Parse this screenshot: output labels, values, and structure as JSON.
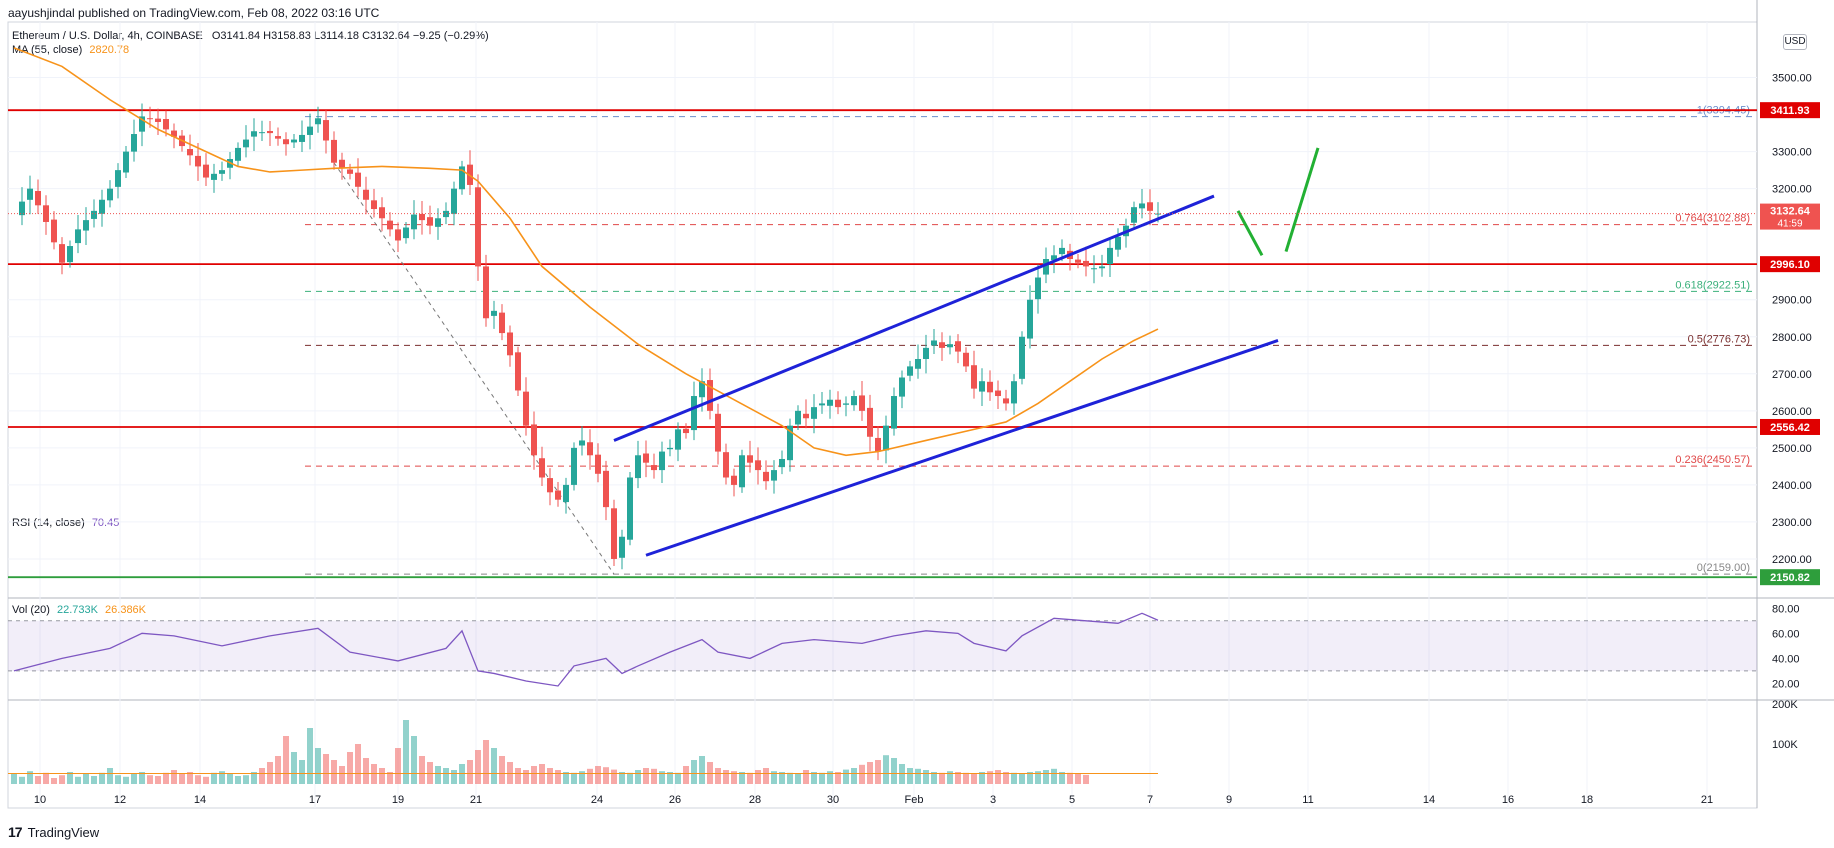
{
  "header": {
    "published_by": "aayushjindal published on TradingView.com, Feb 08, 2022 03:16 UTC"
  },
  "legend": {
    "symbol": "Ethereum / U.S. Dollar, 4h, COINBASE",
    "ohlc": "O3141.84 H3158.83 L3114.18 C3132.64 −9.25 (−0.29%)",
    "ma_label": "MA (55, close)",
    "ma_value": "2820.78",
    "rsi_label": "RSI (14, close)",
    "rsi_value": "70.45",
    "vol_label": "Vol (20)",
    "vol_value1": "22.733K",
    "vol_value2": "26.386K"
  },
  "currency_button": "USD",
  "footer": {
    "brand": "TradingView",
    "logo_icon": "tradingview-logo-icon"
  },
  "colors": {
    "up": "#26a69a",
    "down": "#ef5350",
    "ma": "#f7931a",
    "channel": "#1e22d8",
    "resistance": "#e00000",
    "support_green": "#2e9e3c",
    "rsi": "#7e57c2",
    "fib_red": "#e04848",
    "fib_green": "#3bb07b",
    "fib_blue": "#6b8fcc",
    "fib_dark": "#7a2f2f"
  },
  "chart_data": {
    "type": "candlestick",
    "symbol": "Ethereum / U.S. Dollar",
    "timeframe": "4h",
    "exchange": "COINBASE",
    "price_axis": {
      "ylim": [
        2100,
        3650
      ],
      "ticks": [
        2200,
        2300,
        2400,
        2500,
        2600,
        2700,
        2800,
        2900,
        3200,
        3300,
        3500
      ]
    },
    "time_axis": {
      "labels": [
        "10",
        "12",
        "14",
        "17",
        "19",
        "21",
        "24",
        "26",
        "28",
        "30",
        "Feb",
        "3",
        "5",
        "7",
        "9",
        "11",
        "14",
        "16",
        "18",
        "21"
      ]
    },
    "close_path": [
      [
        0,
        3130
      ],
      [
        2,
        3200
      ],
      [
        4,
        3110
      ],
      [
        6,
        3000
      ],
      [
        8,
        3090
      ],
      [
        10,
        3140
      ],
      [
        12,
        3200
      ],
      [
        14,
        3300
      ],
      [
        16,
        3395
      ],
      [
        18,
        3380
      ],
      [
        20,
        3340
      ],
      [
        22,
        3290
      ],
      [
        24,
        3230
      ],
      [
        26,
        3250
      ],
      [
        28,
        3310
      ],
      [
        30,
        3355
      ],
      [
        32,
        3350
      ],
      [
        34,
        3320
      ],
      [
        36,
        3345
      ],
      [
        38,
        3390
      ],
      [
        40,
        3270
      ],
      [
        42,
        3240
      ],
      [
        44,
        3170
      ],
      [
        46,
        3120
      ],
      [
        48,
        3060
      ],
      [
        50,
        3130
      ],
      [
        52,
        3100
      ],
      [
        54,
        3140
      ],
      [
        56,
        3260
      ],
      [
        57,
        3210
      ],
      [
        58,
        2990
      ],
      [
        59,
        2850
      ],
      [
        60,
        2870
      ],
      [
        62,
        2750
      ],
      [
        64,
        2560
      ],
      [
        65,
        2480
      ],
      [
        66,
        2420
      ],
      [
        67,
        2380
      ],
      [
        68,
        2360
      ],
      [
        69,
        2400
      ],
      [
        70,
        2500
      ],
      [
        71,
        2520
      ],
      [
        72,
        2480
      ],
      [
        73,
        2430
      ],
      [
        74,
        2340
      ],
      [
        75,
        2200
      ],
      [
        76,
        2260
      ],
      [
        77,
        2420
      ],
      [
        78,
        2480
      ],
      [
        79,
        2460
      ],
      [
        80,
        2440
      ],
      [
        81,
        2490
      ],
      [
        82,
        2500
      ],
      [
        83,
        2550
      ],
      [
        84,
        2540
      ],
      [
        85,
        2640
      ],
      [
        86,
        2680
      ],
      [
        87,
        2600
      ],
      [
        88,
        2490
      ],
      [
        89,
        2420
      ],
      [
        90,
        2400
      ],
      [
        91,
        2480
      ],
      [
        92,
        2460
      ],
      [
        93,
        2440
      ],
      [
        94,
        2410
      ],
      [
        95,
        2440
      ],
      [
        96,
        2470
      ],
      [
        97,
        2560
      ],
      [
        98,
        2600
      ],
      [
        99,
        2580
      ],
      [
        100,
        2610
      ],
      [
        101,
        2620
      ],
      [
        102,
        2630
      ],
      [
        103,
        2610
      ],
      [
        104,
        2620
      ],
      [
        105,
        2640
      ],
      [
        106,
        2600
      ],
      [
        107,
        2530
      ],
      [
        108,
        2490
      ],
      [
        109,
        2560
      ],
      [
        110,
        2640
      ],
      [
        111,
        2690
      ],
      [
        112,
        2720
      ],
      [
        113,
        2740
      ],
      [
        114,
        2770
      ],
      [
        115,
        2790
      ],
      [
        116,
        2770
      ],
      [
        117,
        2780
      ],
      [
        118,
        2760
      ],
      [
        119,
        2720
      ],
      [
        120,
        2660
      ],
      [
        121,
        2680
      ],
      [
        122,
        2650
      ],
      [
        123,
        2640
      ],
      [
        124,
        2620
      ],
      [
        125,
        2680
      ],
      [
        126,
        2800
      ],
      [
        127,
        2900
      ],
      [
        128,
        2960
      ],
      [
        129,
        3010
      ],
      [
        130,
        3020
      ],
      [
        131,
        3040
      ],
      [
        132,
        3010
      ],
      [
        133,
        3000
      ],
      [
        134,
        2990
      ],
      [
        135,
        2985
      ],
      [
        136,
        2990
      ],
      [
        137,
        3040
      ],
      [
        138,
        3070
      ],
      [
        139,
        3100
      ],
      [
        140,
        3150
      ],
      [
        141,
        3160
      ],
      [
        142,
        3140
      ],
      [
        143,
        3132.64
      ]
    ],
    "ma_path": [
      [
        0,
        3580
      ],
      [
        6,
        3530
      ],
      [
        12,
        3440
      ],
      [
        18,
        3360
      ],
      [
        24,
        3300
      ],
      [
        28,
        3260
      ],
      [
        32,
        3245
      ],
      [
        36,
        3250
      ],
      [
        40,
        3255
      ],
      [
        46,
        3260
      ],
      [
        52,
        3255
      ],
      [
        56,
        3250
      ],
      [
        58,
        3220
      ],
      [
        62,
        3120
      ],
      [
        66,
        2990
      ],
      [
        72,
        2880
      ],
      [
        78,
        2780
      ],
      [
        84,
        2700
      ],
      [
        90,
        2630
      ],
      [
        96,
        2560
      ],
      [
        100,
        2500
      ],
      [
        104,
        2480
      ],
      [
        108,
        2490
      ],
      [
        114,
        2520
      ],
      [
        120,
        2550
      ],
      [
        124,
        2570
      ],
      [
        128,
        2620
      ],
      [
        132,
        2680
      ],
      [
        136,
        2740
      ],
      [
        140,
        2790
      ],
      [
        143,
        2820.78
      ]
    ],
    "horizontal_levels": [
      {
        "label": "3411.93",
        "price": 3411.93,
        "color": "#e00000"
      },
      {
        "label": "2996.10",
        "price": 2996.1,
        "color": "#e00000"
      },
      {
        "label": "2556.42",
        "price": 2556.42,
        "color": "#e00000"
      },
      {
        "label": "2150.82",
        "price": 2150.82,
        "color": "#2e9e3c"
      }
    ],
    "fibonacci_levels": [
      {
        "label": "1(3394.45)",
        "price": 3394.45
      },
      {
        "label": "0.764(3102.88)",
        "price": 3102.88
      },
      {
        "label": "0.618(2922.51)",
        "price": 2922.51
      },
      {
        "label": "0.5(2776.73)",
        "price": 2776.73
      },
      {
        "label": "0.236(2450.57)",
        "price": 2450.57
      },
      {
        "label": "0(2159.00)",
        "price": 2159.0
      }
    ],
    "current_price": {
      "label": "3132.64",
      "price": 3132.64,
      "countdown": "41:59"
    },
    "channel": {
      "upper": [
        [
          75,
          2520
        ],
        [
          150,
          3180
        ]
      ],
      "lower": [
        [
          79,
          2210
        ],
        [
          158,
          2790
        ]
      ]
    },
    "projection_arrows": [
      {
        "from": [
          153,
          3140
        ],
        "to": [
          156,
          3020
        ]
      },
      {
        "from": [
          159,
          3030
        ],
        "to": [
          163,
          3310
        ]
      }
    ],
    "rsi": {
      "ylim": [
        10,
        85
      ],
      "ticks": [
        20,
        40,
        60,
        80
      ],
      "upper_band": 70,
      "lower_band": 30,
      "path": [
        [
          0,
          30
        ],
        [
          6,
          40
        ],
        [
          12,
          48
        ],
        [
          16,
          60
        ],
        [
          20,
          58
        ],
        [
          26,
          50
        ],
        [
          32,
          58
        ],
        [
          38,
          64
        ],
        [
          42,
          45
        ],
        [
          48,
          38
        ],
        [
          54,
          48
        ],
        [
          56,
          62
        ],
        [
          58,
          30
        ],
        [
          60,
          28
        ],
        [
          64,
          22
        ],
        [
          68,
          18
        ],
        [
          70,
          34
        ],
        [
          74,
          40
        ],
        [
          76,
          28
        ],
        [
          78,
          34
        ],
        [
          82,
          45
        ],
        [
          86,
          55
        ],
        [
          88,
          45
        ],
        [
          92,
          40
        ],
        [
          96,
          52
        ],
        [
          100,
          55
        ],
        [
          106,
          52
        ],
        [
          110,
          58
        ],
        [
          114,
          62
        ],
        [
          118,
          60
        ],
        [
          120,
          52
        ],
        [
          124,
          46
        ],
        [
          126,
          58
        ],
        [
          130,
          72
        ],
        [
          134,
          70
        ],
        [
          138,
          68
        ],
        [
          141,
          76
        ],
        [
          143,
          70.45
        ]
      ]
    },
    "volume": {
      "ticks": [
        "100K",
        "200K"
      ],
      "ma_value": 26.386,
      "bars_k": [
        25,
        18,
        32,
        20,
        28,
        15,
        22,
        30,
        18,
        25,
        20,
        28,
        40,
        22,
        18,
        25,
        30,
        22,
        20,
        28,
        35,
        25,
        30,
        22,
        18,
        28,
        32,
        25,
        20,
        22,
        30,
        40,
        55,
        70,
        120,
        80,
        60,
        140,
        90,
        75,
        60,
        45,
        80,
        100,
        65,
        50,
        40,
        30,
        90,
        160,
        120,
        70,
        55,
        45,
        40,
        35,
        50,
        60,
        85,
        110,
        90,
        70,
        55,
        40,
        35,
        45,
        50,
        40,
        35,
        30,
        28,
        32,
        38,
        45,
        42,
        36,
        30,
        28,
        35,
        40,
        38,
        32,
        30,
        28,
        45,
        60,
        70,
        55,
        40,
        35,
        32,
        30,
        28,
        35,
        40,
        32,
        30,
        28,
        26,
        35,
        30,
        28,
        32,
        30,
        36,
        40,
        48,
        55,
        60,
        72,
        65,
        50,
        40,
        38,
        35,
        30,
        28,
        32,
        30,
        28,
        26,
        30,
        32,
        35,
        30,
        28,
        26,
        30,
        32,
        35,
        38,
        30,
        28,
        25,
        22.733
      ]
    }
  }
}
